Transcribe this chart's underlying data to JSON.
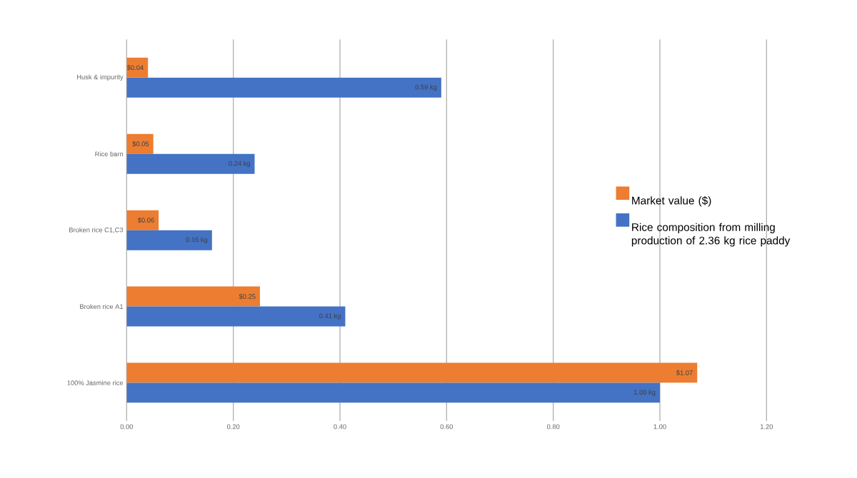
{
  "chart_data": {
    "type": "bar",
    "orientation": "horizontal",
    "categories": [
      "Husk & impurity",
      "Rice barn",
      "Broken rice C1,C3",
      "Broken rice A1",
      "100% Jasmine rice"
    ],
    "series": [
      {
        "name": "Market value ($)",
        "color": "#ed7d31",
        "values": [
          0.04,
          0.05,
          0.06,
          0.25,
          1.07
        ],
        "value_labels": [
          "$0.04",
          "$0.05",
          "$0.06",
          "$0.25",
          "$1.07"
        ]
      },
      {
        "name": "Rice composition from milling production of 2.36 kg rice paddy",
        "color": "#4472c4",
        "values": [
          0.59,
          0.24,
          0.16,
          0.41,
          1.0
        ],
        "value_labels": [
          "0.59 kg",
          "0.24 kg",
          "0.16 kg",
          "0.41 kg",
          "1.00 kg"
        ]
      }
    ],
    "xlim": [
      0,
      1.2
    ],
    "xticks": [
      {
        "value": 0,
        "label": "0.00"
      },
      {
        "value": 0.2,
        "label": "0.20"
      },
      {
        "value": 0.4,
        "label": "0.40"
      },
      {
        "value": 0.6,
        "label": "0.60"
      },
      {
        "value": 0.8,
        "label": "0.80"
      },
      {
        "value": 1.0,
        "label": "1.00"
      },
      {
        "value": 1.2,
        "label": "1.20"
      }
    ],
    "grid": "x",
    "legend": "right"
  }
}
